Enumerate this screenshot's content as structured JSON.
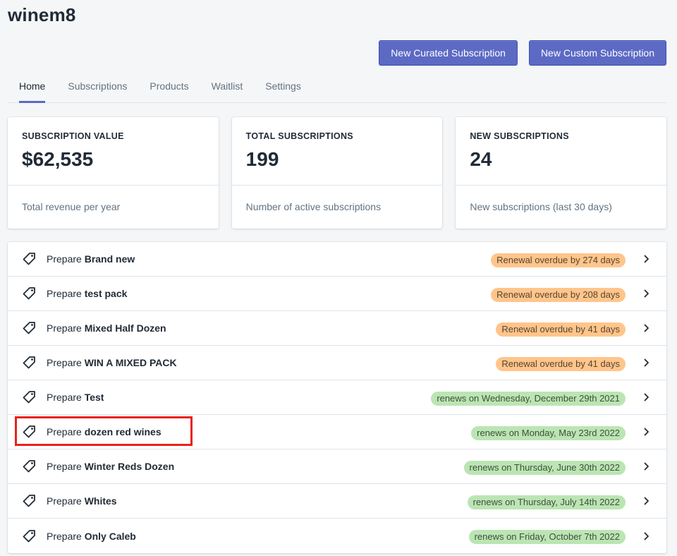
{
  "app": {
    "title": "winem8"
  },
  "header": {
    "buttons": [
      {
        "label": "New Curated Subscription"
      },
      {
        "label": "New Custom Subscription"
      }
    ]
  },
  "tabs": [
    {
      "label": "Home",
      "active": true
    },
    {
      "label": "Subscriptions"
    },
    {
      "label": "Products"
    },
    {
      "label": "Waitlist"
    },
    {
      "label": "Settings"
    }
  ],
  "cards": [
    {
      "title": "SUBSCRIPTION VALUE",
      "value": "$62,535",
      "footer": "Total revenue per year"
    },
    {
      "title": "TOTAL SUBSCRIPTIONS",
      "value": "199",
      "footer": "Number of active subscriptions"
    },
    {
      "title": "NEW SUBSCRIPTIONS",
      "value": "24",
      "footer": "New subscriptions (last 30 days)"
    }
  ],
  "list": {
    "prefix": "Prepare",
    "rows": [
      {
        "name": "Brand new",
        "status": "Renewal overdue by 274 days",
        "kind": "overdue"
      },
      {
        "name": "test pack",
        "status": "Renewal overdue by 208 days",
        "kind": "overdue"
      },
      {
        "name": "Mixed Half Dozen",
        "status": "Renewal overdue by 41 days",
        "kind": "overdue"
      },
      {
        "name": "WIN A MIXED PACK",
        "status": "Renewal overdue by 41 days",
        "kind": "overdue"
      },
      {
        "name": "Test",
        "status": "renews on Wednesday, December 29th 2021",
        "kind": "renews"
      },
      {
        "name": "dozen red wines",
        "status": "renews on Monday, May 23rd 2022",
        "kind": "renews",
        "highlighted": true
      },
      {
        "name": "Winter Reds Dozen",
        "status": "renews on Thursday, June 30th 2022",
        "kind": "renews"
      },
      {
        "name": "Whites",
        "status": "renews on Thursday, July 14th 2022",
        "kind": "renews"
      },
      {
        "name": "Only Caleb",
        "status": "renews on Friday, October 7th 2022",
        "kind": "renews"
      }
    ]
  },
  "colors": {
    "accent": "#5c6ac4",
    "overdue_badge": "#ffc58b",
    "renews_badge": "#bbe5b3",
    "highlight": "#e8231c"
  },
  "icons": {
    "row_icon": "tag-icon",
    "row_action": "chevron-right-icon"
  }
}
